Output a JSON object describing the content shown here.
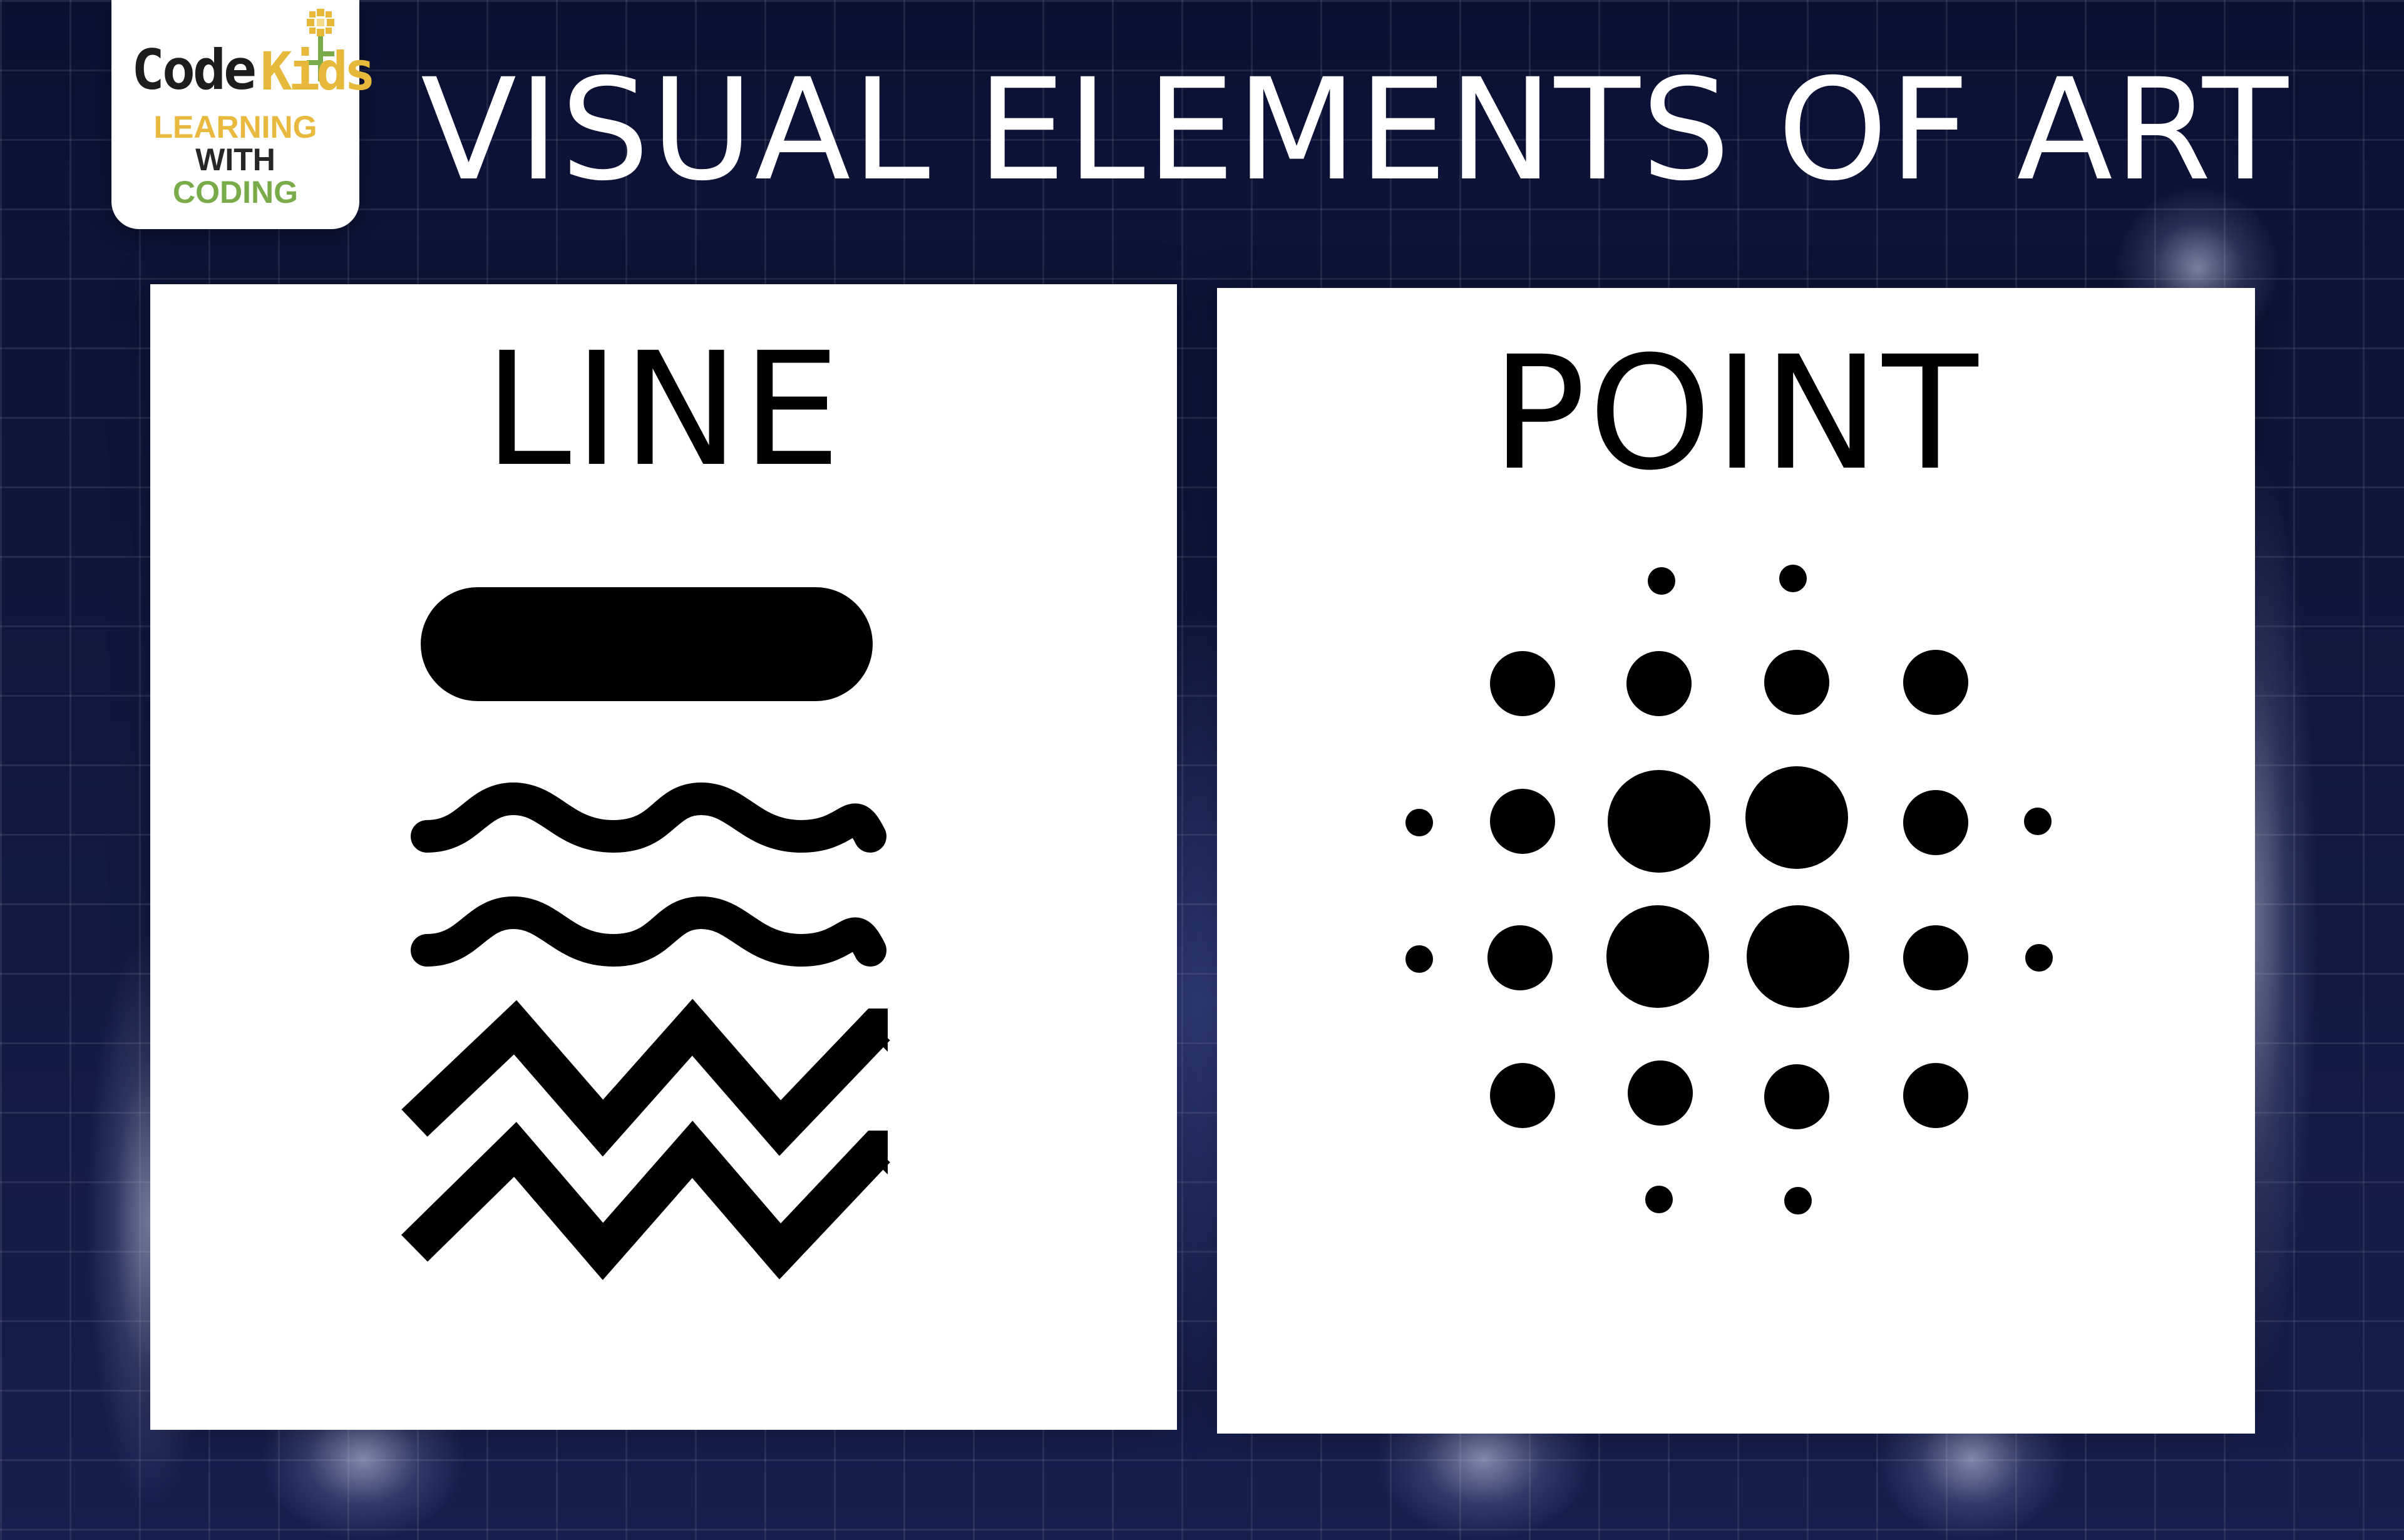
{
  "logo": {
    "brand_part1": "Code",
    "brand_part2": "Kids",
    "line1": "LEARNING",
    "line2": "WITH",
    "line3": "CODING"
  },
  "title": "VISUAL ELEMENTS OF ART",
  "panels": {
    "line": {
      "title": "LINE"
    },
    "point": {
      "title": "POINT"
    }
  },
  "colors": {
    "background": "#0c1336",
    "panel": "#ffffff",
    "ink": "#000000",
    "logo_yellow": "#e9b93f",
    "logo_green": "#7aab4a"
  }
}
